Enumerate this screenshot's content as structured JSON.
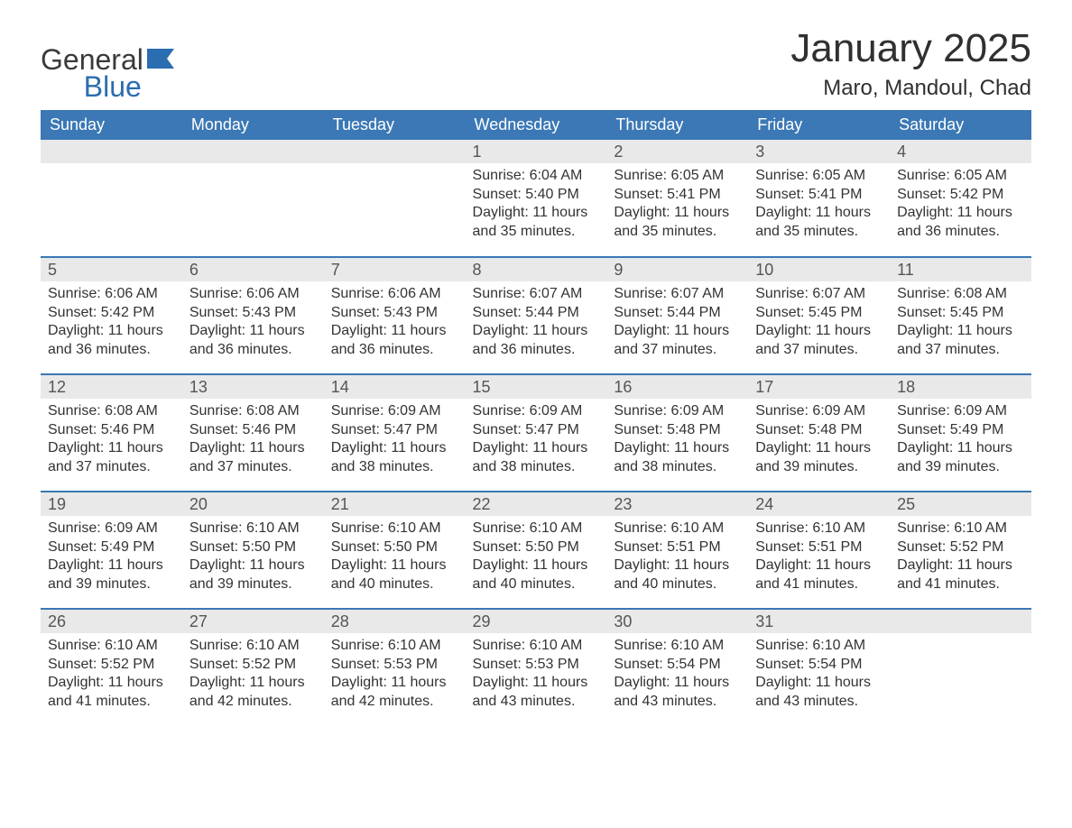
{
  "brand": {
    "word1": "General",
    "word2": "Blue",
    "flag_color": "#2a6db0"
  },
  "title": {
    "month": "January 2025",
    "location": "Maro, Mandoul, Chad"
  },
  "colors": {
    "header_bg": "#3b78b5",
    "header_fg": "#ffffff",
    "row_divider": "#3b78b5",
    "daynum_bg": "#e9e9e9",
    "text": "#333333"
  },
  "weekdays": [
    "Sunday",
    "Monday",
    "Tuesday",
    "Wednesday",
    "Thursday",
    "Friday",
    "Saturday"
  ],
  "weeks": [
    [
      null,
      null,
      null,
      {
        "n": "1",
        "sr": "6:04 AM",
        "ss": "5:40 PM",
        "dl": "11 hours and 35 minutes."
      },
      {
        "n": "2",
        "sr": "6:05 AM",
        "ss": "5:41 PM",
        "dl": "11 hours and 35 minutes."
      },
      {
        "n": "3",
        "sr": "6:05 AM",
        "ss": "5:41 PM",
        "dl": "11 hours and 35 minutes."
      },
      {
        "n": "4",
        "sr": "6:05 AM",
        "ss": "5:42 PM",
        "dl": "11 hours and 36 minutes."
      }
    ],
    [
      {
        "n": "5",
        "sr": "6:06 AM",
        "ss": "5:42 PM",
        "dl": "11 hours and 36 minutes."
      },
      {
        "n": "6",
        "sr": "6:06 AM",
        "ss": "5:43 PM",
        "dl": "11 hours and 36 minutes."
      },
      {
        "n": "7",
        "sr": "6:06 AM",
        "ss": "5:43 PM",
        "dl": "11 hours and 36 minutes."
      },
      {
        "n": "8",
        "sr": "6:07 AM",
        "ss": "5:44 PM",
        "dl": "11 hours and 36 minutes."
      },
      {
        "n": "9",
        "sr": "6:07 AM",
        "ss": "5:44 PM",
        "dl": "11 hours and 37 minutes."
      },
      {
        "n": "10",
        "sr": "6:07 AM",
        "ss": "5:45 PM",
        "dl": "11 hours and 37 minutes."
      },
      {
        "n": "11",
        "sr": "6:08 AM",
        "ss": "5:45 PM",
        "dl": "11 hours and 37 minutes."
      }
    ],
    [
      {
        "n": "12",
        "sr": "6:08 AM",
        "ss": "5:46 PM",
        "dl": "11 hours and 37 minutes."
      },
      {
        "n": "13",
        "sr": "6:08 AM",
        "ss": "5:46 PM",
        "dl": "11 hours and 37 minutes."
      },
      {
        "n": "14",
        "sr": "6:09 AM",
        "ss": "5:47 PM",
        "dl": "11 hours and 38 minutes."
      },
      {
        "n": "15",
        "sr": "6:09 AM",
        "ss": "5:47 PM",
        "dl": "11 hours and 38 minutes."
      },
      {
        "n": "16",
        "sr": "6:09 AM",
        "ss": "5:48 PM",
        "dl": "11 hours and 38 minutes."
      },
      {
        "n": "17",
        "sr": "6:09 AM",
        "ss": "5:48 PM",
        "dl": "11 hours and 39 minutes."
      },
      {
        "n": "18",
        "sr": "6:09 AM",
        "ss": "5:49 PM",
        "dl": "11 hours and 39 minutes."
      }
    ],
    [
      {
        "n": "19",
        "sr": "6:09 AM",
        "ss": "5:49 PM",
        "dl": "11 hours and 39 minutes."
      },
      {
        "n": "20",
        "sr": "6:10 AM",
        "ss": "5:50 PM",
        "dl": "11 hours and 39 minutes."
      },
      {
        "n": "21",
        "sr": "6:10 AM",
        "ss": "5:50 PM",
        "dl": "11 hours and 40 minutes."
      },
      {
        "n": "22",
        "sr": "6:10 AM",
        "ss": "5:50 PM",
        "dl": "11 hours and 40 minutes."
      },
      {
        "n": "23",
        "sr": "6:10 AM",
        "ss": "5:51 PM",
        "dl": "11 hours and 40 minutes."
      },
      {
        "n": "24",
        "sr": "6:10 AM",
        "ss": "5:51 PM",
        "dl": "11 hours and 41 minutes."
      },
      {
        "n": "25",
        "sr": "6:10 AM",
        "ss": "5:52 PM",
        "dl": "11 hours and 41 minutes."
      }
    ],
    [
      {
        "n": "26",
        "sr": "6:10 AM",
        "ss": "5:52 PM",
        "dl": "11 hours and 41 minutes."
      },
      {
        "n": "27",
        "sr": "6:10 AM",
        "ss": "5:52 PM",
        "dl": "11 hours and 42 minutes."
      },
      {
        "n": "28",
        "sr": "6:10 AM",
        "ss": "5:53 PM",
        "dl": "11 hours and 42 minutes."
      },
      {
        "n": "29",
        "sr": "6:10 AM",
        "ss": "5:53 PM",
        "dl": "11 hours and 43 minutes."
      },
      {
        "n": "30",
        "sr": "6:10 AM",
        "ss": "5:54 PM",
        "dl": "11 hours and 43 minutes."
      },
      {
        "n": "31",
        "sr": "6:10 AM",
        "ss": "5:54 PM",
        "dl": "11 hours and 43 minutes."
      },
      null
    ]
  ],
  "labels": {
    "sunrise": "Sunrise: ",
    "sunset": "Sunset: ",
    "daylight": "Daylight: "
  }
}
